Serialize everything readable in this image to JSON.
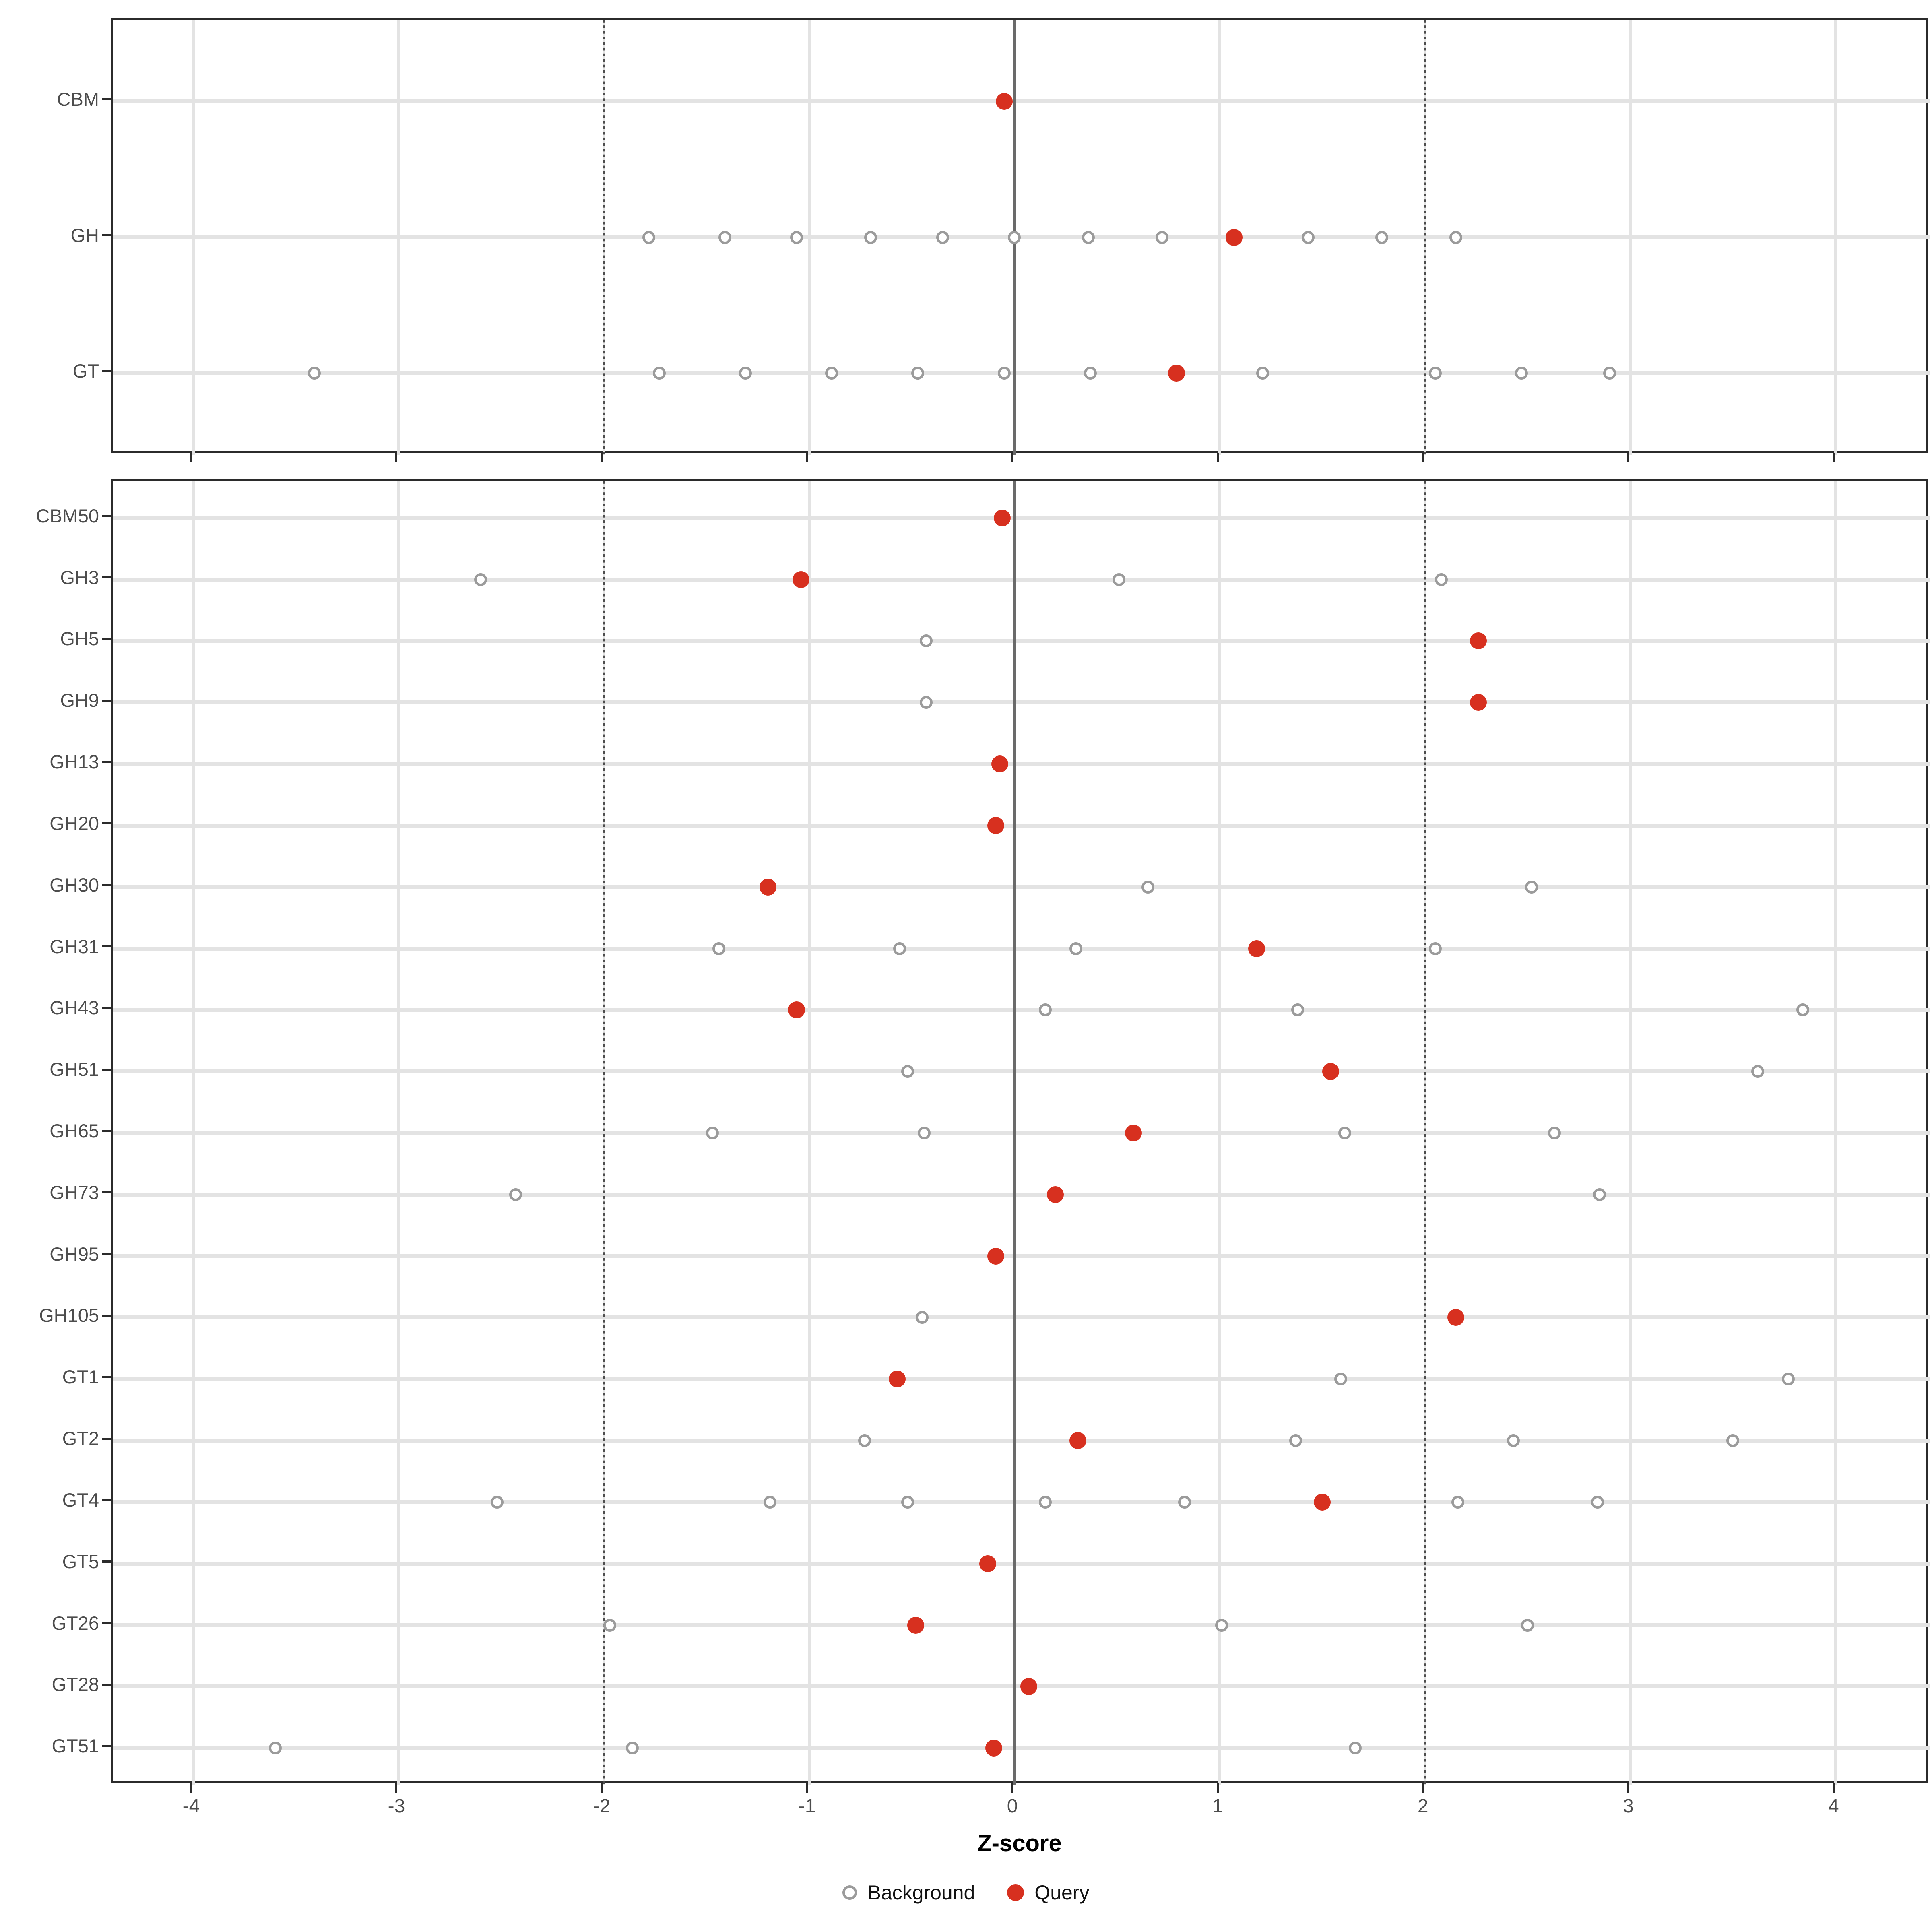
{
  "axis": {
    "xlabel": "Z-score",
    "xlim": [
      -4.39,
      4.46
    ],
    "xticks": [
      -4,
      -3,
      -2,
      -1,
      0,
      1,
      2,
      3,
      4
    ],
    "xtick_labels": [
      "-4",
      "-3",
      "-2",
      "-1",
      "0",
      "1",
      "2",
      "3",
      "4"
    ],
    "refline_solid": 0,
    "reflines_dotted": [
      -2,
      2
    ]
  },
  "legend": {
    "background_label": "Background",
    "query_label": "Query"
  },
  "colors": {
    "query": "#d7301f",
    "background_stroke": "#9b9b9b",
    "grid": "#e3e3e3",
    "refline_dotted": "#4d4d4d",
    "refline_solid": "#6a6a6a",
    "axis_text": "#4d4d4d",
    "panel_border": "#2b2b2b"
  },
  "chart_data": [
    {
      "type": "scatter",
      "panel": "top",
      "xlabel": "Z-score",
      "xlim": [
        -4.39,
        4.46
      ],
      "legend_entries": [
        "Background",
        "Query"
      ],
      "rows": [
        {
          "category": "CBM",
          "background": [],
          "query": -0.05
        },
        {
          "category": "GH",
          "background": [
            -1.78,
            -1.41,
            -1.06,
            -0.7,
            -0.35,
            0.0,
            0.36,
            0.72,
            1.43,
            1.79,
            2.15
          ],
          "query": 1.07
        },
        {
          "category": "GT",
          "background": [
            -3.41,
            -1.73,
            -1.31,
            -0.89,
            -0.47,
            -0.05,
            0.37,
            1.21,
            2.05,
            2.47,
            2.9
          ],
          "query": 0.79
        }
      ]
    },
    {
      "type": "scatter",
      "panel": "bottom",
      "xlabel": "Z-score",
      "xlim": [
        -4.39,
        4.46
      ],
      "legend_entries": [
        "Background",
        "Query"
      ],
      "rows": [
        {
          "category": "CBM50",
          "background": [],
          "query": -0.06
        },
        {
          "category": "GH3",
          "background": [
            -2.6,
            0.51,
            2.08
          ],
          "query": -1.04
        },
        {
          "category": "GH5",
          "background": [
            -0.43
          ],
          "query": 2.26
        },
        {
          "category": "GH9",
          "background": [
            -0.43
          ],
          "query": 2.26
        },
        {
          "category": "GH13",
          "background": [],
          "query": -0.07
        },
        {
          "category": "GH20",
          "background": [],
          "query": -0.09
        },
        {
          "category": "GH30",
          "background": [
            0.65,
            2.52
          ],
          "query": -1.2
        },
        {
          "category": "GH31",
          "background": [
            -1.44,
            -0.56,
            0.3,
            2.05
          ],
          "query": 1.18
        },
        {
          "category": "GH43",
          "background": [
            0.15,
            1.38,
            3.84
          ],
          "query": -1.06
        },
        {
          "category": "GH51",
          "background": [
            -0.52,
            3.62
          ],
          "query": 1.54
        },
        {
          "category": "GH65",
          "background": [
            -1.47,
            -0.44,
            1.61,
            2.63
          ],
          "query": 0.58
        },
        {
          "category": "GH73",
          "background": [
            -2.43,
            2.85
          ],
          "query": 0.2
        },
        {
          "category": "GH95",
          "background": [],
          "query": -0.09
        },
        {
          "category": "GH105",
          "background": [
            -0.45
          ],
          "query": 2.15
        },
        {
          "category": "GT1",
          "background": [
            1.59,
            3.77
          ],
          "query": -0.57
        },
        {
          "category": "GT2",
          "background": [
            -0.73,
            1.37,
            2.43,
            3.5
          ],
          "query": 0.31
        },
        {
          "category": "GT4",
          "background": [
            -2.52,
            -1.19,
            -0.52,
            0.15,
            0.83,
            2.16,
            2.84
          ],
          "query": 1.5
        },
        {
          "category": "GT5",
          "background": [],
          "query": -0.13
        },
        {
          "category": "GT26",
          "background": [
            -1.97,
            1.01,
            2.5
          ],
          "query": -0.48
        },
        {
          "category": "GT28",
          "background": [],
          "query": 0.07
        },
        {
          "category": "GT51",
          "background": [
            -3.6,
            -1.86,
            1.66
          ],
          "query": -0.1
        }
      ]
    }
  ]
}
